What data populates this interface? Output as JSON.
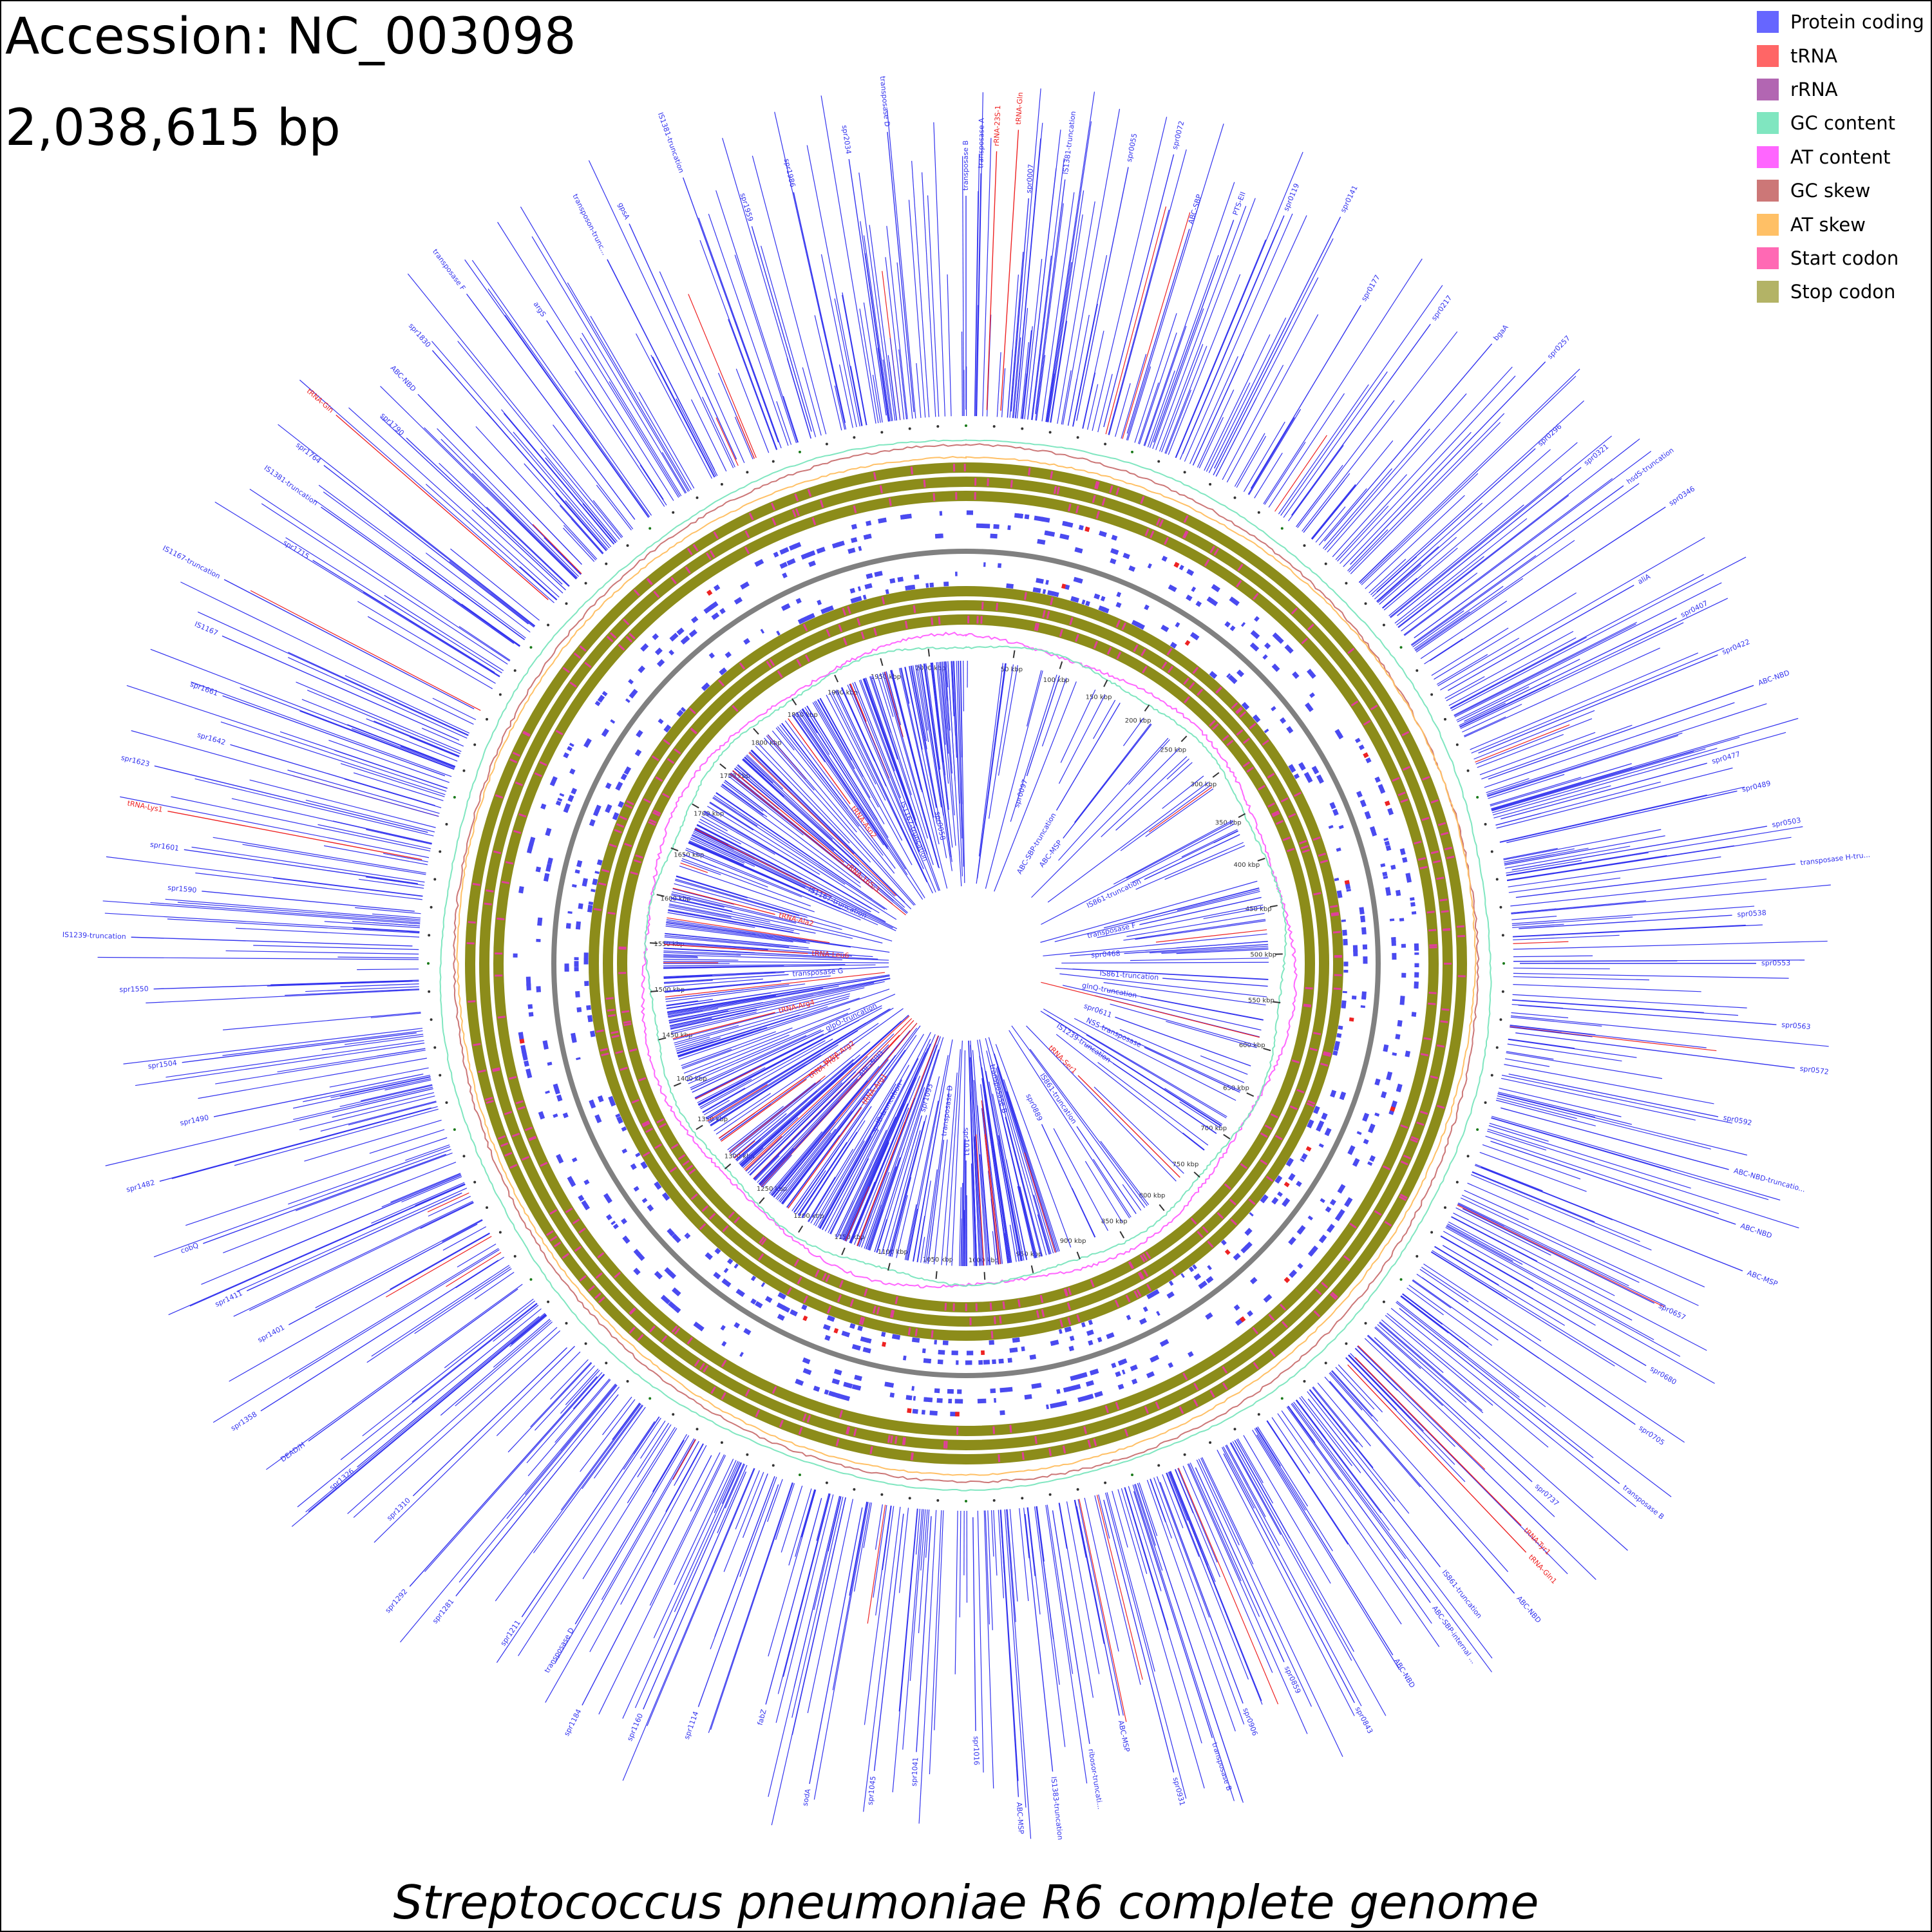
{
  "header": {
    "accession": "Accession: NC_003098",
    "length": "2,038,615 bp"
  },
  "legend": [
    {
      "label": "Protein coding",
      "color": "#6666ff"
    },
    {
      "label": "tRNA",
      "color": "#ff6666"
    },
    {
      "label": "rRNA",
      "color": "#b266b2"
    },
    {
      "label": "GC content",
      "color": "#80e6c0"
    },
    {
      "label": "AT content",
      "color": "#ff66ff"
    },
    {
      "label": "GC skew",
      "color": "#cc7777"
    },
    {
      "label": "AT skew",
      "color": "#ffc066"
    },
    {
      "label": "Start codon",
      "color": "#ff69b4"
    },
    {
      "label": "Stop codon",
      "color": "#b3b366"
    }
  ],
  "genome": {
    "length_bp": 2038615,
    "ticks_kbp": [
      50,
      100,
      150,
      200,
      250,
      300,
      350,
      400,
      450,
      500,
      550,
      600,
      650,
      700,
      750,
      800,
      850,
      900,
      950,
      1000,
      1050,
      1100,
      1150,
      1200,
      1250,
      1300,
      1350,
      1400,
      1450,
      1500,
      1550,
      1600,
      1650,
      1700,
      1750,
      1800,
      1850,
      1900,
      1950,
      2000
    ],
    "tick_unit": "kbp",
    "gene_color": "#3333ee",
    "rna_color": "#ee2222",
    "backbone_color": "#808080",
    "stop_codon_color": "#8c8c1a",
    "start_codon_color": "#e0409a",
    "outer_labels": [
      {
        "text": "transposase B",
        "pos": 0.0,
        "kind": "gene"
      },
      {
        "text": "transposase A",
        "pos": 0.003,
        "kind": "gene"
      },
      {
        "text": "rRNA-23S-1",
        "pos": 0.006,
        "kind": "rna"
      },
      {
        "text": "tRNA-Gln",
        "pos": 0.01,
        "kind": "rna"
      },
      {
        "text": "spr0007",
        "pos": 0.013,
        "kind": "gene"
      },
      {
        "text": "IS1381-truncation",
        "pos": 0.02,
        "kind": "gene"
      },
      {
        "text": "spr0055",
        "pos": 0.032,
        "kind": "gene"
      },
      {
        "text": "spr0072",
        "pos": 0.04,
        "kind": "gene"
      },
      {
        "text": "ABC-SBP",
        "pos": 0.047,
        "kind": "gene"
      },
      {
        "text": "PTS-EII",
        "pos": 0.055,
        "kind": "gene"
      },
      {
        "text": "spr0119",
        "pos": 0.064,
        "kind": "gene"
      },
      {
        "text": "spr0141",
        "pos": 0.074,
        "kind": "gene"
      },
      {
        "text": "spr0177",
        "pos": 0.086,
        "kind": "gene"
      },
      {
        "text": "spr0217",
        "pos": 0.1,
        "kind": "gene"
      },
      {
        "text": "bgaA",
        "pos": 0.112,
        "kind": "gene"
      },
      {
        "text": "spr0257",
        "pos": 0.122,
        "kind": "gene"
      },
      {
        "text": "spr0296",
        "pos": 0.133,
        "kind": "gene"
      },
      {
        "text": "spr0321",
        "pos": 0.142,
        "kind": "gene"
      },
      {
        "text": "hsdS-truncation",
        "pos": 0.15,
        "kind": "gene"
      },
      {
        "text": "spr0346",
        "pos": 0.158,
        "kind": "gene"
      },
      {
        "text": "aliA",
        "pos": 0.168,
        "kind": "gene"
      },
      {
        "text": "spr0407",
        "pos": 0.178,
        "kind": "gene"
      },
      {
        "text": "spr0422",
        "pos": 0.188,
        "kind": "gene"
      },
      {
        "text": "ABC-NBD",
        "pos": 0.196,
        "kind": "gene"
      },
      {
        "text": "spr0477",
        "pos": 0.208,
        "kind": "gene"
      },
      {
        "text": "spr0489",
        "pos": 0.215,
        "kind": "gene"
      },
      {
        "text": "spr0503",
        "pos": 0.223,
        "kind": "gene"
      },
      {
        "text": "transposase H-tru...",
        "pos": 0.231,
        "kind": "gene"
      },
      {
        "text": "spr0538",
        "pos": 0.24,
        "kind": "gene"
      },
      {
        "text": "spr0553",
        "pos": 0.25,
        "kind": "gene"
      },
      {
        "text": "spr0563",
        "pos": 0.262,
        "kind": "gene"
      },
      {
        "text": "spr0572",
        "pos": 0.27,
        "kind": "gene"
      },
      {
        "text": "spr0592",
        "pos": 0.282,
        "kind": "gene"
      },
      {
        "text": "ABC-NBD-truncatio...",
        "pos": 0.292,
        "kind": "gene"
      },
      {
        "text": "ABC-NBD",
        "pos": 0.302,
        "kind": "gene"
      },
      {
        "text": "ABC-MSP",
        "pos": 0.31,
        "kind": "gene"
      },
      {
        "text": "spr0657",
        "pos": 0.323,
        "kind": "gene"
      },
      {
        "text": "spr0680",
        "pos": 0.335,
        "kind": "gene"
      },
      {
        "text": "spr0705",
        "pos": 0.346,
        "kind": "gene"
      },
      {
        "text": "transposase B",
        "pos": 0.357,
        "kind": "gene"
      },
      {
        "text": "spr0737",
        "pos": 0.368,
        "kind": "gene"
      },
      {
        "text": "tRNA-Tyr1",
        "pos": 0.376,
        "kind": "rna"
      },
      {
        "text": "tRNA-Gln1",
        "pos": 0.379,
        "kind": "rna"
      },
      {
        "text": "ABC-NBD",
        "pos": 0.386,
        "kind": "gene"
      },
      {
        "text": "IS861-truncation",
        "pos": 0.394,
        "kind": "gene"
      },
      {
        "text": "ABC-SBP-internal ...",
        "pos": 0.4,
        "kind": "gene"
      },
      {
        "text": "ABC-NBD",
        "pos": 0.412,
        "kind": "gene"
      },
      {
        "text": "spr0843",
        "pos": 0.423,
        "kind": "gene"
      },
      {
        "text": "spr0859",
        "pos": 0.432,
        "kind": "gene"
      },
      {
        "text": "spr0906",
        "pos": 0.443,
        "kind": "gene"
      },
      {
        "text": "transposase B",
        "pos": 0.451,
        "kind": "gene"
      },
      {
        "text": "spr0931",
        "pos": 0.46,
        "kind": "gene"
      },
      {
        "text": "ABC-MSP",
        "pos": 0.468,
        "kind": "gene"
      },
      {
        "text": "ribosor-truncati...",
        "pos": 0.475,
        "kind": "gene"
      },
      {
        "text": "IS1383-truncation",
        "pos": 0.483,
        "kind": "gene"
      },
      {
        "text": "ABC-MSP",
        "pos": 0.49,
        "kind": "gene"
      },
      {
        "text": "spr1016",
        "pos": 0.498,
        "kind": "gene"
      },
      {
        "text": "spr1041",
        "pos": 0.51,
        "kind": "gene"
      },
      {
        "text": "spr1045",
        "pos": 0.518,
        "kind": "gene"
      },
      {
        "text": "sodA",
        "pos": 0.53,
        "kind": "gene"
      },
      {
        "text": "fabZ",
        "pos": 0.542,
        "kind": "gene"
      },
      {
        "text": "spr1114",
        "pos": 0.555,
        "kind": "gene"
      },
      {
        "text": "spr1160",
        "pos": 0.565,
        "kind": "gene"
      },
      {
        "text": "spr1184",
        "pos": 0.576,
        "kind": "gene"
      },
      {
        "text": "transposase D",
        "pos": 0.585,
        "kind": "gene"
      },
      {
        "text": "spr1211",
        "pos": 0.595,
        "kind": "gene"
      },
      {
        "text": "spr1281",
        "pos": 0.608,
        "kind": "gene"
      },
      {
        "text": "spr1292",
        "pos": 0.616,
        "kind": "gene"
      },
      {
        "text": "spr1310",
        "pos": 0.628,
        "kind": "gene"
      },
      {
        "text": "spr1326",
        "pos": 0.64,
        "kind": "gene"
      },
      {
        "text": "DEAD/H",
        "pos": 0.65,
        "kind": "gene"
      },
      {
        "text": "spr1358",
        "pos": 0.66,
        "kind": "gene"
      },
      {
        "text": "spr1401",
        "pos": 0.672,
        "kind": "gene"
      },
      {
        "text": "spr1411",
        "pos": 0.682,
        "kind": "gene"
      },
      {
        "text": "cobQ",
        "pos": 0.694,
        "kind": "gene"
      },
      {
        "text": "spr1482",
        "pos": 0.708,
        "kind": "gene"
      },
      {
        "text": "spr1490",
        "pos": 0.718,
        "kind": "gene"
      },
      {
        "text": "spr1504",
        "pos": 0.73,
        "kind": "gene"
      },
      {
        "text": "spr1550",
        "pos": 0.745,
        "kind": "gene"
      },
      {
        "text": "IS1239-truncation",
        "pos": 0.755,
        "kind": "gene"
      },
      {
        "text": "spr1590",
        "pos": 0.765,
        "kind": "gene"
      },
      {
        "text": "spr1601",
        "pos": 0.773,
        "kind": "gene"
      },
      {
        "text": "tRNA-Lys1",
        "pos": 0.78,
        "kind": "rna"
      },
      {
        "text": "spr1623",
        "pos": 0.788,
        "kind": "gene"
      },
      {
        "text": "spr1642",
        "pos": 0.796,
        "kind": "gene"
      },
      {
        "text": "spr1661",
        "pos": 0.805,
        "kind": "gene"
      },
      {
        "text": "IS1167",
        "pos": 0.816,
        "kind": "gene"
      },
      {
        "text": "IS1167-truncation",
        "pos": 0.826,
        "kind": "gene"
      },
      {
        "text": "spr1715",
        "pos": 0.838,
        "kind": "gene"
      },
      {
        "text": "IS1381-truncation",
        "pos": 0.848,
        "kind": "gene"
      },
      {
        "text": "spr1764",
        "pos": 0.855,
        "kind": "gene"
      },
      {
        "text": "tRNA-Gln",
        "pos": 0.864,
        "kind": "rna"
      },
      {
        "text": "spr1790",
        "pos": 0.87,
        "kind": "gene"
      },
      {
        "text": "ABC-NBD",
        "pos": 0.878,
        "kind": "gene"
      },
      {
        "text": "spr1830",
        "pos": 0.886,
        "kind": "gene"
      },
      {
        "text": "transposase F",
        "pos": 0.898,
        "kind": "gene"
      },
      {
        "text": "argS",
        "pos": 0.908,
        "kind": "gene"
      },
      {
        "text": "transposon-trunc...",
        "pos": 0.925,
        "kind": "gene"
      },
      {
        "text": "gpsA",
        "pos": 0.932,
        "kind": "gene"
      },
      {
        "text": "IS1381-truncation",
        "pos": 0.945,
        "kind": "gene"
      },
      {
        "text": "spr1959",
        "pos": 0.955,
        "kind": "gene"
      },
      {
        "text": "spr1986",
        "pos": 0.965,
        "kind": "gene"
      },
      {
        "text": "spr2034",
        "pos": 0.977,
        "kind": "gene"
      },
      {
        "text": "transposase D",
        "pos": 0.985,
        "kind": "gene"
      }
    ],
    "inner_labels": [
      {
        "text": "spr0097",
        "pos": 0.05,
        "kind": "gene"
      },
      {
        "text": "ABC-SBP-truncation",
        "pos": 0.085,
        "kind": "gene"
      },
      {
        "text": "ABC-MSP",
        "pos": 0.105,
        "kind": "gene"
      },
      {
        "text": "IS861-truncation",
        "pos": 0.18,
        "kind": "gene"
      },
      {
        "text": "transposase F",
        "pos": 0.215,
        "kind": "gene"
      },
      {
        "text": "spr0468",
        "pos": 0.24,
        "kind": "gene"
      },
      {
        "text": "IS861-truncation",
        "pos": 0.262,
        "kind": "gene"
      },
      {
        "text": "glnQ-truncation",
        "pos": 0.28,
        "kind": "gene"
      },
      {
        "text": "spr0611",
        "pos": 0.305,
        "kind": "gene"
      },
      {
        "text": "NSS-transposase",
        "pos": 0.32,
        "kind": "gene"
      },
      {
        "text": "IS1239-truncation",
        "pos": 0.345,
        "kind": "gene"
      },
      {
        "text": "tRNA-Ser1",
        "pos": 0.375,
        "kind": "rna"
      },
      {
        "text": "IS861-truncation",
        "pos": 0.405,
        "kind": "gene"
      },
      {
        "text": "spr0889",
        "pos": 0.43,
        "kind": "gene"
      },
      {
        "text": "transposase B",
        "pos": 0.46,
        "kind": "gene"
      },
      {
        "text": "spr1031",
        "pos": 0.5,
        "kind": "gene"
      },
      {
        "text": "transposase D",
        "pos": 0.52,
        "kind": "gene"
      },
      {
        "text": "spr1093",
        "pos": 0.545,
        "kind": "gene"
      },
      {
        "text": "spdB-truncation",
        "pos": 0.58,
        "kind": "gene"
      },
      {
        "text": "tRNA-Arg1",
        "pos": 0.6,
        "kind": "rna"
      },
      {
        "text": "ABC-NBD",
        "pos": 0.62,
        "kind": "gene"
      },
      {
        "text": "tRNA-Pro1",
        "pos": 0.65,
        "kind": "rna"
      },
      {
        "text": "tRNA-Arg2",
        "pos": 0.652,
        "kind": "rna"
      },
      {
        "text": "glpO-truncation",
        "pos": 0.68,
        "kind": "gene"
      },
      {
        "text": "tRNA-Arg4",
        "pos": 0.71,
        "kind": "rna"
      },
      {
        "text": "transposase G",
        "pos": 0.74,
        "kind": "gene"
      },
      {
        "text": "tRNA-Leu6",
        "pos": 0.76,
        "kind": "rna"
      },
      {
        "text": "tRNA-Ala2",
        "pos": 0.79,
        "kind": "rna"
      },
      {
        "text": "IS1167-truncation",
        "pos": 0.82,
        "kind": "gene"
      },
      {
        "text": "rRNA-16S-3",
        "pos": 0.86,
        "kind": "rna"
      },
      {
        "text": "tRNA-Asn2",
        "pos": 0.9,
        "kind": "rna"
      },
      {
        "text": "IS1167-truncation",
        "pos": 0.94,
        "kind": "gene"
      },
      {
        "text": "spr0058",
        "pos": 0.97,
        "kind": "gene"
      }
    ]
  },
  "title": "Streptococcus pneumoniae R6 complete genome"
}
